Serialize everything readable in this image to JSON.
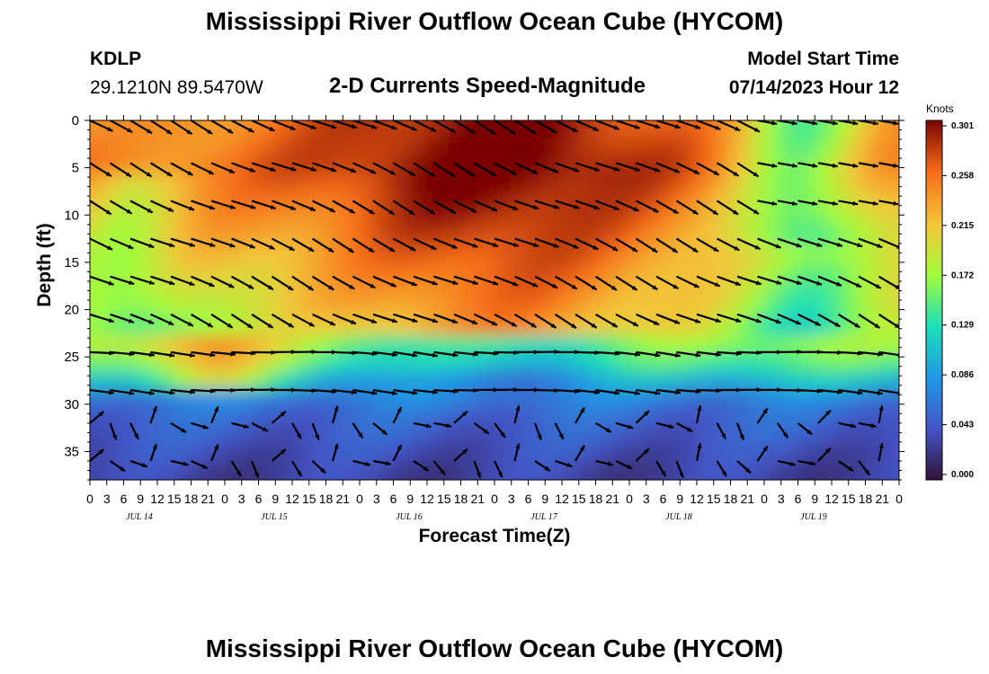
{
  "header": {
    "title": "Mississippi River Outflow Ocean Cube (HYCOM)",
    "station": "KDLP",
    "coords": "29.1210N  89.5470W",
    "subtitle": "2-D Currents Speed-Magnitude",
    "model_start_label": "Model Start Time",
    "model_start_value": "07/14/2023 Hour 12"
  },
  "footer": {
    "title": "Mississippi River Outflow Ocean Cube (HYCOM)"
  },
  "chart_data": {
    "type": "heatmap",
    "xlabel": "Forecast Time(Z)",
    "ylabel": "Depth (ft)",
    "x_range": [
      0,
      144
    ],
    "y_range": [
      0,
      38
    ],
    "y_ticks": [
      "0",
      "5",
      "10",
      "15",
      "20",
      "25",
      "30",
      "35"
    ],
    "x_tick_labels": [
      "0",
      "3",
      "6",
      "9",
      "12",
      "15",
      "18",
      "21",
      "0",
      "3",
      "6",
      "9",
      "12",
      "15",
      "18",
      "21",
      "0",
      "3",
      "6",
      "9",
      "12",
      "15",
      "18",
      "21",
      "0",
      "3",
      "6",
      "9",
      "12",
      "15",
      "18",
      "21",
      "0",
      "3",
      "6",
      "9",
      "12",
      "15",
      "18",
      "21",
      "0",
      "3",
      "6",
      "9",
      "12",
      "15",
      "18",
      "21",
      "0"
    ],
    "day_labels": [
      "JUL 14",
      "JUL 15",
      "JUL 16",
      "JUL 17",
      "JUL 18",
      "JUL 19"
    ],
    "colorbar": {
      "unit": "Knots",
      "ticks": [
        "0.301",
        "0.258",
        "0.215",
        "0.172",
        "0.129",
        "0.086",
        "0.043",
        "0.000"
      ],
      "range": [
        0.0,
        0.301
      ]
    },
    "arrow_depths_ft": [
      0,
      4.5,
      8.5,
      12.5,
      16.5,
      20.5,
      24.5,
      28.5,
      32,
      36
    ],
    "depth_profile": [
      {
        "depth": 0,
        "speed": 0.24
      },
      {
        "depth": 5,
        "speed": 0.25
      },
      {
        "depth": 10,
        "speed": 0.23
      },
      {
        "depth": 15,
        "speed": 0.21
      },
      {
        "depth": 20,
        "speed": 0.19
      },
      {
        "depth": 25,
        "speed": 0.16
      },
      {
        "depth": 28,
        "speed": 0.1
      },
      {
        "depth": 30,
        "speed": 0.06
      },
      {
        "depth": 35,
        "speed": 0.04
      },
      {
        "depth": 38,
        "speed": 0.03
      }
    ]
  }
}
